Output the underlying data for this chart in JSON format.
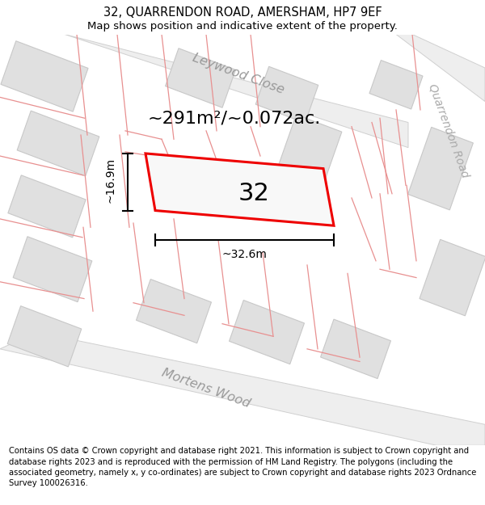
{
  "title": "32, QUARRENDON ROAD, AMERSHAM, HP7 9EF",
  "subtitle": "Map shows position and indicative extent of the property.",
  "footer_text": "Contains OS data © Crown copyright and database right 2021. This information is subject to Crown copyright and database rights 2023 and is reproduced with the permission of HM Land Registry. The polygons (including the associated geometry, namely x, y co-ordinates) are subject to Crown copyright and database rights 2023 Ordnance Survey 100026316.",
  "bg_color": "#ffffff",
  "map_bg": "#f7f7f7",
  "bld_fill": "#e0e0e0",
  "bld_edge": "#c8c8c8",
  "road_fill": "#f0f0f0",
  "plot_line_color": "#e89090",
  "red_plot_edge": "#ee0000",
  "area_label": "~291m²/~0.072ac.",
  "plot_number": "32",
  "width_label": "~32.6m",
  "height_label": "~16.9m",
  "street_leywood": "Leywood Close",
  "street_quarrendon": "Quarrendon Road",
  "street_mortens": "Mortens Wood",
  "title_fontsize": 10.5,
  "subtitle_fontsize": 9.5,
  "footer_fontsize": 7.2,
  "street_fontsize": 11.5,
  "area_fontsize": 16,
  "plot_num_fontsize": 22,
  "dim_fontsize": 10
}
